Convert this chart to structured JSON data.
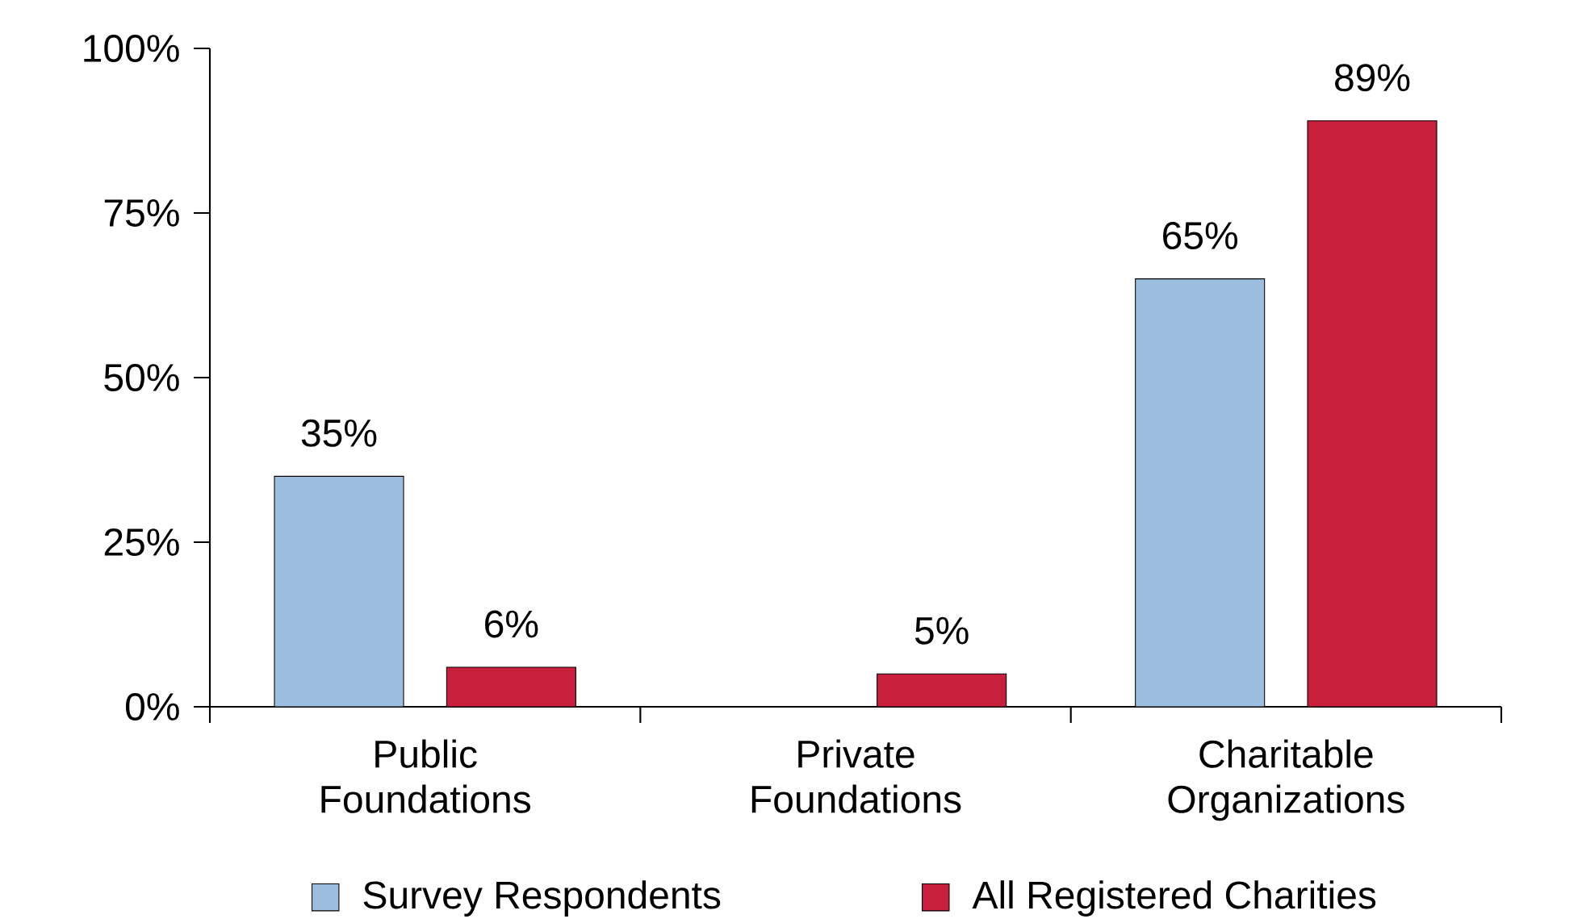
{
  "chart_data": {
    "type": "bar",
    "categories": [
      "Public Foundations",
      "Private Foundations",
      "Charitable Organizations"
    ],
    "series": [
      {
        "name": "Survey Respondents",
        "color": "#9dbfdf",
        "values": [
          35,
          null,
          65
        ],
        "value_labels": [
          "35%",
          null,
          "65%"
        ]
      },
      {
        "name": "All Registered Charities",
        "color": "#c8203c",
        "values": [
          6,
          5,
          89
        ],
        "value_labels": [
          "6%",
          "5%",
          "89%"
        ]
      }
    ],
    "ylim": [
      0,
      100
    ],
    "yticks": [
      {
        "value": 0,
        "label": "0%"
      },
      {
        "value": 25,
        "label": "25%"
      },
      {
        "value": 50,
        "label": "50%"
      },
      {
        "value": 75,
        "label": "75%"
      },
      {
        "value": 100,
        "label": "100%"
      }
    ],
    "grid": false,
    "legend": "bottom"
  }
}
